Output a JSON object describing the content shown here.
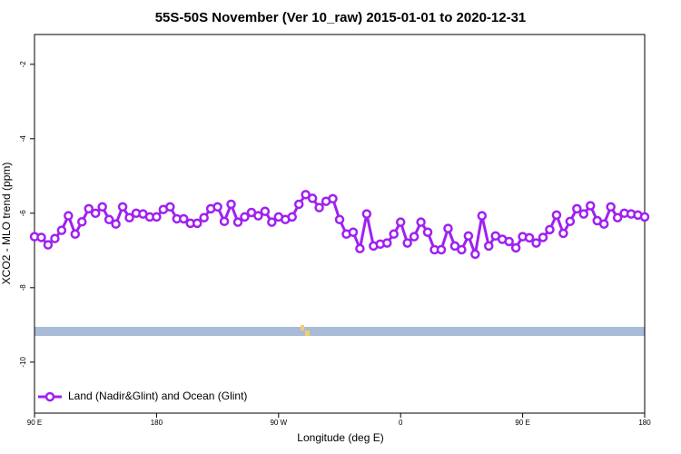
{
  "chart_data": {
    "type": "line",
    "title": "55S-50S November (Ver 10_raw)   2015-01-01 to 2020-12-31",
    "x_label": "Longitude (deg E)",
    "y_label": "XCO2 - MLO trend (ppm)",
    "x": [
      90,
      95,
      100,
      105,
      110,
      115,
      120,
      125,
      130,
      135,
      140,
      145,
      150,
      155,
      160,
      165,
      170,
      175,
      180,
      185,
      190,
      195,
      200,
      205,
      210,
      215,
      220,
      225,
      230,
      235,
      240,
      245,
      250,
      255,
      260,
      265,
      270,
      275,
      280,
      285,
      290,
      295,
      300,
      305,
      310,
      315,
      320,
      325,
      330,
      335,
      340,
      345,
      350,
      355,
      360,
      365,
      370,
      375,
      380,
      385,
      390,
      395,
      400,
      405,
      410,
      415,
      420,
      425,
      430,
      435,
      440,
      445,
      450,
      455,
      460,
      465,
      470,
      475,
      480,
      485,
      490,
      495,
      500,
      505,
      510,
      515,
      520,
      525,
      530,
      535,
      540
    ],
    "series": [
      {
        "name": "Land (Nadir&Glint) and Ocean (Glint)",
        "color": "#a020f0",
        "values": [
          -6.63,
          -6.65,
          -6.85,
          -6.68,
          -6.46,
          -6.07,
          -6.56,
          -6.23,
          -5.88,
          -6.0,
          -5.83,
          -6.17,
          -6.29,
          -5.83,
          -6.12,
          -6.0,
          -6.02,
          -6.1,
          -6.1,
          -5.9,
          -5.83,
          -6.15,
          -6.15,
          -6.27,
          -6.27,
          -6.12,
          -5.88,
          -5.83,
          -6.22,
          -5.76,
          -6.24,
          -6.1,
          -5.98,
          -6.07,
          -5.95,
          -6.24,
          -6.1,
          -6.17,
          -6.1,
          -5.76,
          -5.5,
          -5.6,
          -5.85,
          -5.68,
          -5.61,
          -6.17,
          -6.56,
          -6.51,
          -6.95,
          -6.02,
          -6.88,
          -6.83,
          -6.8,
          -6.56,
          -6.24,
          -6.8,
          -6.63,
          -6.24,
          -6.51,
          -6.98,
          -6.98,
          -6.41,
          -6.88,
          -6.98,
          -6.61,
          -7.1,
          -6.07,
          -6.88,
          -6.61,
          -6.7,
          -6.76,
          -6.93,
          -6.63,
          -6.66,
          -6.8,
          -6.65,
          -6.44,
          -6.05,
          -6.54,
          -6.22,
          -5.88,
          -6.02,
          -5.8,
          -6.2,
          -6.29,
          -5.83,
          -6.12,
          -6.0,
          -6.02,
          -6.05,
          -6.1
        ]
      }
    ],
    "xlim": [
      90,
      540
    ],
    "xticks": [
      {
        "value": 90,
        "label": "90 E"
      },
      180,
      {
        "value": 270,
        "label": "90 W"
      },
      {
        "value": 360,
        "label": "0"
      },
      {
        "value": 450,
        "label": "90 E"
      },
      {
        "value": 540,
        "label": "180"
      }
    ],
    "ylim": [
      -11.37,
      -1.2
    ],
    "yticks": [
      -10,
      -8,
      -6,
      -4,
      -2
    ],
    "legend": "bottom-left"
  }
}
